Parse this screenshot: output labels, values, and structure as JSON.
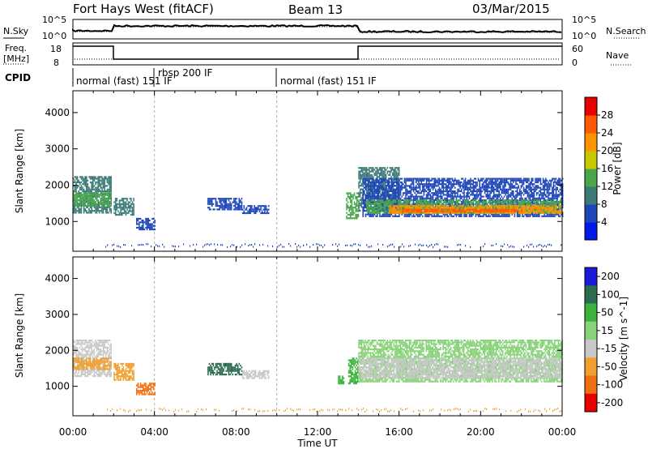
{
  "header": {
    "station": "Fort Hays West (fitACF)",
    "beam": "Beam 13",
    "date": "03/Mar/2015"
  },
  "noise_panel": {
    "left_label": "N.Sky",
    "right_label": "N.Search",
    "left_ticks": [
      "10^5",
      "10^0"
    ],
    "right_ticks": [
      "10^5",
      "10^0"
    ]
  },
  "freq_panel": {
    "left_label_line1": "Freq.",
    "left_label_line2": "[MHz]",
    "right_label": "Nave",
    "left_ticks": [
      "18",
      "8"
    ],
    "right_ticks": [
      "60",
      "0"
    ]
  },
  "cpid": {
    "label": "CPID",
    "segments": [
      "normal (fast) 151 IF",
      "rbsp 200 IF",
      "normal (fast) 151 IF"
    ]
  },
  "chart_data": [
    {
      "type": "heatmap",
      "title": "Power",
      "ylabel": "Slant Range [km]",
      "ylim": [
        180,
        4600
      ],
      "xlim": [
        0,
        24
      ],
      "xlabel": "",
      "yticks": [
        1000,
        2000,
        3000,
        4000
      ],
      "colorbar": {
        "label": "Power [dB]",
        "range": [
          0,
          32
        ],
        "ticks": [
          4,
          8,
          12,
          16,
          20,
          24,
          28
        ],
        "colors": [
          "#0019e6",
          "#1e46b9",
          "#3c7a78",
          "#4aa64b",
          "#c8c800",
          "#ff9400",
          "#ff5a00",
          "#e60000"
        ]
      },
      "regions": [
        {
          "t0": 0.0,
          "t1": 1.9,
          "r0": 1250,
          "r1": 2250,
          "level": 8
        },
        {
          "t0": 0.0,
          "t1": 1.9,
          "r0": 1450,
          "r1": 1800,
          "level": 12
        },
        {
          "t0": 2.0,
          "t1": 3.0,
          "r0": 1200,
          "r1": 1650,
          "level": 8
        },
        {
          "t0": 3.1,
          "t1": 4.0,
          "r0": 800,
          "r1": 1100,
          "level": 4
        },
        {
          "t0": 6.6,
          "t1": 8.3,
          "r0": 1350,
          "r1": 1650,
          "level": 4
        },
        {
          "t0": 8.3,
          "t1": 9.6,
          "r0": 1250,
          "r1": 1450,
          "level": 4
        },
        {
          "t0": 13.4,
          "t1": 14.0,
          "r0": 1100,
          "r1": 1800,
          "level": 12
        },
        {
          "t0": 14.0,
          "t1": 16.0,
          "r0": 1300,
          "r1": 2500,
          "level": 8
        },
        {
          "t0": 14.2,
          "t1": 24.0,
          "r0": 1150,
          "r1": 2200,
          "level": 6
        },
        {
          "t0": 14.4,
          "t1": 24.0,
          "r0": 1250,
          "r1": 1600,
          "level": 12
        },
        {
          "t0": 15.5,
          "t1": 24.0,
          "r0": 1250,
          "r1": 1450,
          "level": 20
        },
        {
          "t0": 16.0,
          "t1": 22.0,
          "r0": 1280,
          "r1": 1350,
          "level": 24
        }
      ]
    },
    {
      "type": "heatmap",
      "title": "Velocity",
      "ylabel": "Slant Range [km]",
      "xlabel": "Time UT",
      "ylim": [
        180,
        4600
      ],
      "xlim": [
        0,
        24
      ],
      "yticks": [
        1000,
        2000,
        3000,
        4000
      ],
      "xticks": [
        "00:00",
        "04:00",
        "08:00",
        "12:00",
        "16:00",
        "20:00",
        "00:00"
      ],
      "colorbar": {
        "label": "Velocity [m s^-1]",
        "ticks": [
          200,
          100,
          50,
          15,
          -15,
          -50,
          -100,
          -200
        ],
        "colors": [
          "#1a1ad9",
          "#2c6b50",
          "#3cb43c",
          "#88d27a",
          "#c8c8c8",
          "#f0a030",
          "#f07010",
          "#e60000"
        ]
      },
      "regions": [
        {
          "t0": 0.0,
          "t1": 1.9,
          "r0": 1300,
          "r1": 2300,
          "level": -15
        },
        {
          "t0": 0.0,
          "t1": 1.9,
          "r0": 1500,
          "r1": 1800,
          "level": -50
        },
        {
          "t0": 2.0,
          "t1": 3.0,
          "r0": 1200,
          "r1": 1650,
          "level": -50
        },
        {
          "t0": 3.1,
          "t1": 4.0,
          "r0": 800,
          "r1": 1100,
          "level": -100
        },
        {
          "t0": 6.6,
          "t1": 8.3,
          "r0": 1350,
          "r1": 1650,
          "level": 100
        },
        {
          "t0": 8.3,
          "t1": 9.6,
          "r0": 1250,
          "r1": 1450,
          "level": -15
        },
        {
          "t0": 13.0,
          "t1": 13.3,
          "r0": 1100,
          "r1": 1300,
          "level": 50
        },
        {
          "t0": 13.5,
          "t1": 14.0,
          "r0": 1100,
          "r1": 1800,
          "level": 50
        },
        {
          "t0": 14.0,
          "t1": 24.0,
          "r0": 1150,
          "r1": 2300,
          "level": 15
        },
        {
          "t0": 14.0,
          "t1": 24.0,
          "r0": 1250,
          "r1": 1800,
          "level": -15
        }
      ]
    }
  ]
}
